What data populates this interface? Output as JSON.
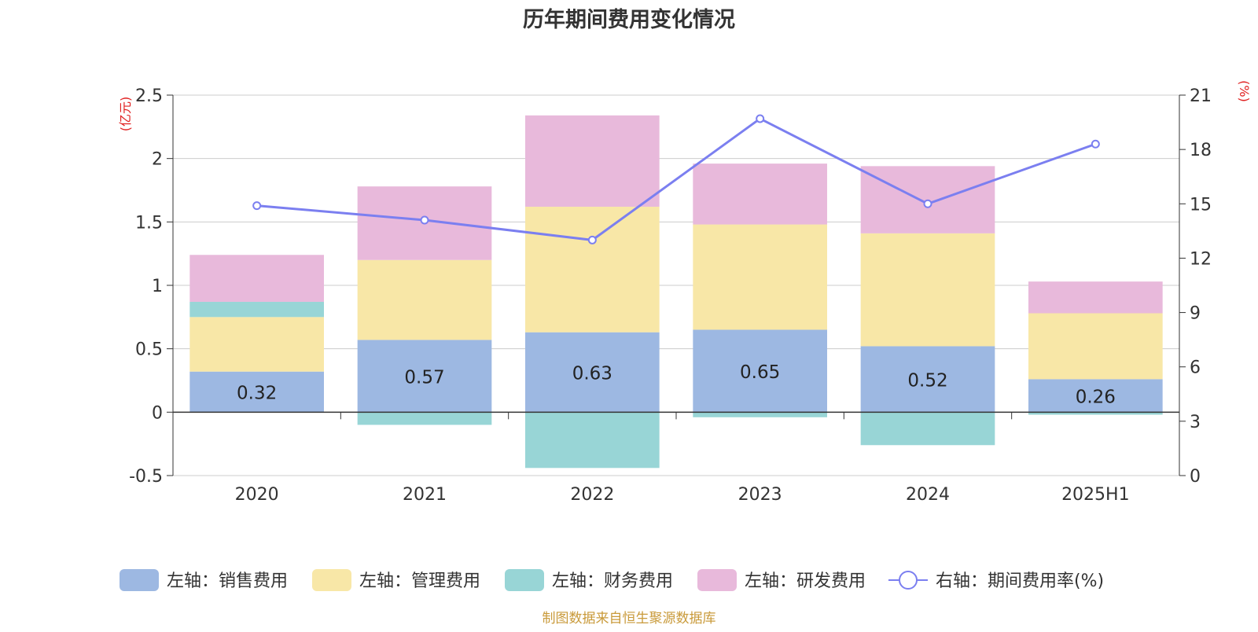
{
  "chart_data": {
    "type": "bar",
    "stacked": true,
    "title": "历年期间费用变化情况",
    "categories": [
      "2020",
      "2021",
      "2022",
      "2023",
      "2024",
      "2025H1"
    ],
    "y_left": {
      "unit_label": "(亿元)",
      "range": [
        -0.5,
        2.5
      ],
      "ticks": [
        "-0.5",
        "0",
        "0.5",
        "1",
        "1.5",
        "2",
        "2.5"
      ]
    },
    "y_right": {
      "unit_label": "(%)",
      "range": [
        0,
        21
      ],
      "ticks": [
        "0",
        "3",
        "6",
        "9",
        "12",
        "15",
        "18",
        "21"
      ]
    },
    "grid": true,
    "legend_position": "bottom",
    "series": [
      {
        "name": "左轴：销售费用",
        "axis": "left",
        "color": "#9db8e2",
        "values": [
          0.32,
          0.57,
          0.63,
          0.65,
          0.52,
          0.26
        ],
        "labels": [
          "0.32",
          "0.57",
          "0.63",
          "0.65",
          "0.52",
          "0.26"
        ]
      },
      {
        "name": "左轴：管理费用",
        "axis": "left",
        "color": "#f8e7a7",
        "values": [
          0.43,
          0.63,
          0.99,
          0.83,
          0.89,
          0.52
        ]
      },
      {
        "name": "左轴：财务费用",
        "axis": "left",
        "color": "#98d5d6",
        "values": [
          0.12,
          -0.1,
          -0.44,
          -0.04,
          -0.26,
          -0.02
        ]
      },
      {
        "name": "左轴：研发费用",
        "axis": "left",
        "color": "#e8b9db",
        "values": [
          0.37,
          0.58,
          0.72,
          0.48,
          0.53,
          0.25
        ]
      },
      {
        "name": "右轴：期间费用率(%)",
        "axis": "right",
        "type": "line",
        "color": "#7b7ff0",
        "values": [
          14.9,
          14.1,
          13.0,
          19.7,
          15.0,
          18.3
        ]
      }
    ]
  },
  "footer": {
    "source": "制图数据来自恒生聚源数据库"
  },
  "colors": {
    "axis_unit": "#e02020",
    "source_text": "#c99a3a",
    "grid": "#cccccc",
    "text": "#333333"
  }
}
